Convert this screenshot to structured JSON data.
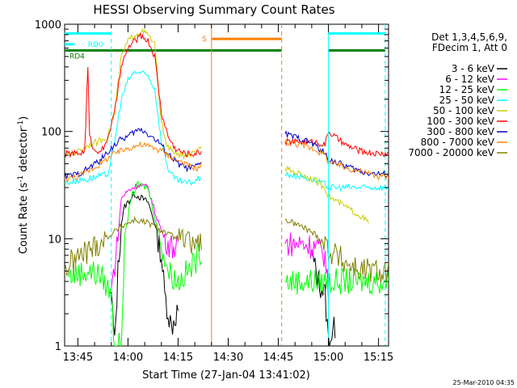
{
  "chart_data": {
    "type": "line",
    "title": "HESSI Observing Summary Count Rates",
    "xlabel": "Start Time (27-Jan-04 13:41:02)",
    "ylabel": "Count Rate (s-1 detector-1)",
    "ylabel_parts": {
      "pre": "Count Rate (s",
      "sup1": "-1",
      "mid": " detector",
      "sup2": "-1",
      "post": ")"
    },
    "timestamp": "25-Mar-2010 04:35",
    "y_scale": "log",
    "ylim": [
      1,
      1000
    ],
    "xlim": [
      "13:41:02",
      "15:18:00"
    ],
    "x_ticks": [
      "13:45",
      "14:00",
      "14:15",
      "14:30",
      "14:45",
      "15:00",
      "15:15"
    ],
    "y_ticks": [
      "1",
      "10",
      "100",
      "1000"
    ],
    "legend_header": [
      "Det 1,3,4,5,6,9,",
      "FDecim 1, Att 0"
    ],
    "legend_placement": "right",
    "series": [
      {
        "name": "3 - 6 keV",
        "color": "#000000",
        "points": [
          [
            "13:55",
            3.2
          ],
          [
            "13:56",
            1.0
          ],
          [
            "13:57",
            5
          ],
          [
            "13:58",
            14
          ],
          [
            "13:59",
            20
          ],
          [
            "14:00",
            22
          ],
          [
            "14:02",
            26
          ],
          [
            "14:04",
            24
          ],
          [
            "14:06",
            22
          ],
          [
            "14:08",
            14
          ],
          [
            "14:10",
            7
          ],
          [
            "14:11",
            3
          ],
          [
            "14:13",
            1.5
          ],
          [
            "14:15",
            2.2
          ],
          [
            "14:55",
            7
          ],
          [
            "14:57",
            4
          ],
          [
            "14:59",
            3
          ],
          [
            "15:00",
            1.1
          ],
          [
            "15:02",
            1.5
          ]
        ]
      },
      {
        "name": "6 - 12 keV",
        "color": "#ff00ff",
        "points": [
          [
            "13:55",
            3.3
          ],
          [
            "13:57",
            10
          ],
          [
            "13:58",
            24
          ],
          [
            "14:00",
            28
          ],
          [
            "14:03",
            32
          ],
          [
            "14:06",
            30
          ],
          [
            "14:08",
            18
          ],
          [
            "14:10",
            12
          ],
          [
            "14:12",
            9
          ],
          [
            "14:15",
            8
          ],
          [
            "14:47",
            9
          ],
          [
            "14:52",
            9
          ],
          [
            "14:56",
            8.5
          ],
          [
            "14:59",
            7
          ],
          [
            "15:00",
            3
          ]
        ]
      },
      {
        "name": "12 - 25 keV",
        "color": "#00ff00",
        "points": [
          [
            "13:42",
            4.5
          ],
          [
            "13:48",
            5
          ],
          [
            "13:52",
            4.5
          ],
          [
            "13:55",
            3
          ],
          [
            "13:56",
            1.0
          ],
          [
            "13:58",
            1.0
          ],
          [
            "13:59",
            10
          ],
          [
            "14:01",
            25
          ],
          [
            "14:03",
            32
          ],
          [
            "14:06",
            30
          ],
          [
            "14:09",
            12
          ],
          [
            "14:12",
            5
          ],
          [
            "14:15",
            4
          ],
          [
            "14:18",
            5
          ],
          [
            "14:20",
            6
          ],
          [
            "14:22",
            8
          ],
          [
            "14:47",
            4
          ],
          [
            "14:52",
            4
          ],
          [
            "14:57",
            4
          ],
          [
            "15:00",
            4
          ],
          [
            "15:05",
            4
          ],
          [
            "15:10",
            4
          ],
          [
            "15:15",
            4
          ],
          [
            "15:18",
            4
          ]
        ]
      },
      {
        "name": "25 - 50 keV",
        "color": "#00ffff",
        "points": [
          [
            "13:41",
            33
          ],
          [
            "13:45",
            35
          ],
          [
            "13:48",
            36
          ],
          [
            "13:51",
            38
          ],
          [
            "13:54",
            40
          ],
          [
            "13:56",
            80
          ],
          [
            "13:58",
            200
          ],
          [
            "14:00",
            300
          ],
          [
            "14:02",
            360
          ],
          [
            "14:04",
            350
          ],
          [
            "14:06",
            330
          ],
          [
            "14:08",
            250
          ],
          [
            "14:10",
            80
          ],
          [
            "14:12",
            45
          ],
          [
            "14:14",
            36
          ],
          [
            "14:17",
            33
          ],
          [
            "14:20",
            34
          ],
          [
            "14:22",
            38
          ],
          [
            "14:47",
            40
          ],
          [
            "14:52",
            38
          ],
          [
            "14:56",
            35
          ],
          [
            "14:59",
            32
          ],
          [
            "15:00",
            30
          ],
          [
            "15:05",
            30
          ],
          [
            "15:10",
            30
          ],
          [
            "15:15",
            30
          ],
          [
            "15:18",
            30
          ]
        ]
      },
      {
        "name": "50 - 100 keV",
        "color": "#cccc00",
        "points": [
          [
            "13:41",
            60
          ],
          [
            "13:45",
            65
          ],
          [
            "13:48",
            75
          ],
          [
            "13:51",
            80
          ],
          [
            "13:54",
            90
          ],
          [
            "13:56",
            150
          ],
          [
            "13:58",
            500
          ],
          [
            "14:00",
            700
          ],
          [
            "14:02",
            800
          ],
          [
            "14:04",
            860
          ],
          [
            "14:06",
            800
          ],
          [
            "14:08",
            650
          ],
          [
            "14:10",
            120
          ],
          [
            "14:12",
            70
          ],
          [
            "14:15",
            60
          ],
          [
            "14:18",
            60
          ],
          [
            "14:21",
            65
          ],
          [
            "14:22",
            70
          ],
          [
            "14:47",
            45
          ],
          [
            "14:52",
            40
          ],
          [
            "14:56",
            35
          ],
          [
            "14:59",
            30
          ],
          [
            "15:00",
            25
          ],
          [
            "15:05",
            20
          ],
          [
            "15:10",
            16
          ],
          [
            "15:12",
            14
          ]
        ]
      },
      {
        "name": "100 - 300 keV",
        "color": "#ff0000",
        "points": [
          [
            "13:41",
            62
          ],
          [
            "13:45",
            62
          ],
          [
            "13:47",
            65
          ],
          [
            "13:48",
            400
          ],
          [
            "13:48.5",
            90
          ],
          [
            "13:50",
            65
          ],
          [
            "13:53",
            70
          ],
          [
            "13:56",
            150
          ],
          [
            "13:58",
            400
          ],
          [
            "14:00",
            600
          ],
          [
            "14:02",
            700
          ],
          [
            "14:04",
            780
          ],
          [
            "14:06",
            700
          ],
          [
            "14:08",
            500
          ],
          [
            "14:10",
            150
          ],
          [
            "14:12",
            90
          ],
          [
            "14:14",
            70
          ],
          [
            "14:17",
            62
          ],
          [
            "14:20",
            62
          ],
          [
            "14:22",
            65
          ],
          [
            "14:47",
            80
          ],
          [
            "14:52",
            80
          ],
          [
            "14:56",
            80
          ],
          [
            "14:59",
            75
          ],
          [
            "15:00",
            100
          ],
          [
            "15:05",
            75
          ],
          [
            "15:10",
            65
          ],
          [
            "15:15",
            62
          ],
          [
            "15:18",
            62
          ]
        ]
      },
      {
        "name": "300 - 800 keV",
        "color": "#0000cc",
        "points": [
          [
            "13:41",
            38
          ],
          [
            "13:45",
            40
          ],
          [
            "13:48",
            45
          ],
          [
            "13:52",
            55
          ],
          [
            "13:55",
            70
          ],
          [
            "13:58",
            85
          ],
          [
            "14:00",
            90
          ],
          [
            "14:02",
            100
          ],
          [
            "14:04",
            105
          ],
          [
            "14:06",
            95
          ],
          [
            "14:08",
            85
          ],
          [
            "14:10",
            75
          ],
          [
            "14:12",
            62
          ],
          [
            "14:15",
            50
          ],
          [
            "14:18",
            45
          ],
          [
            "14:21",
            48
          ],
          [
            "14:22",
            50
          ],
          [
            "14:47",
            95
          ],
          [
            "14:52",
            85
          ],
          [
            "14:56",
            75
          ],
          [
            "14:59",
            62
          ],
          [
            "15:00",
            55
          ],
          [
            "15:05",
            48
          ],
          [
            "15:10",
            42
          ],
          [
            "15:15",
            40
          ],
          [
            "15:18",
            40
          ]
        ]
      },
      {
        "name": "800 - 7000 keV",
        "color": "#ff8000",
        "points": [
          [
            "13:41",
            36
          ],
          [
            "13:45",
            38
          ],
          [
            "13:48",
            43
          ],
          [
            "13:52",
            50
          ],
          [
            "13:55",
            60
          ],
          [
            "13:58",
            66
          ],
          [
            "14:00",
            70
          ],
          [
            "14:02",
            73
          ],
          [
            "14:04",
            75
          ],
          [
            "14:06",
            73
          ],
          [
            "14:08",
            70
          ],
          [
            "14:10",
            66
          ],
          [
            "14:12",
            60
          ],
          [
            "14:15",
            54
          ],
          [
            "14:18",
            48
          ],
          [
            "14:21",
            45
          ],
          [
            "14:22",
            50
          ],
          [
            "14:47",
            80
          ],
          [
            "14:52",
            75
          ],
          [
            "14:56",
            68
          ],
          [
            "14:59",
            60
          ],
          [
            "15:00",
            52
          ],
          [
            "15:05",
            46
          ],
          [
            "15:10",
            42
          ],
          [
            "15:15",
            38
          ],
          [
            "15:18",
            38
          ]
        ]
      },
      {
        "name": "7000 - 20000 keV",
        "color": "#808000",
        "points": [
          [
            "13:41",
            5
          ],
          [
            "13:43",
            6
          ],
          [
            "13:46",
            7
          ],
          [
            "13:49",
            8
          ],
          [
            "13:52",
            9.5
          ],
          [
            "13:55",
            11
          ],
          [
            "13:58",
            13
          ],
          [
            "14:00",
            14
          ],
          [
            "14:02",
            15
          ],
          [
            "14:04",
            14.5
          ],
          [
            "14:06",
            14
          ],
          [
            "14:08",
            13
          ],
          [
            "14:10",
            12
          ],
          [
            "14:12",
            11
          ],
          [
            "14:15",
            10
          ],
          [
            "14:18",
            9
          ],
          [
            "14:21",
            9
          ],
          [
            "14:22",
            9.5
          ],
          [
            "14:47",
            15
          ],
          [
            "14:52",
            13
          ],
          [
            "14:56",
            11
          ],
          [
            "14:59",
            9
          ],
          [
            "15:00",
            8
          ],
          [
            "15:05",
            6
          ],
          [
            "15:10",
            5
          ],
          [
            "15:15",
            5
          ],
          [
            "15:18",
            5
          ]
        ]
      }
    ],
    "vertical_lines": [
      {
        "time": "13:55",
        "style": "dashed",
        "color": "#00ffff"
      },
      {
        "time": "14:25",
        "style": "solid",
        "color": "#ff8000"
      },
      {
        "time": "14:46",
        "style": "dashed",
        "color": "#ff8000"
      },
      {
        "time": "15:00",
        "style": "solid",
        "color": "#00ffff"
      },
      {
        "time": "15:17",
        "style": "dashed",
        "color": "#00ffff"
      }
    ],
    "status_bars": [
      {
        "name": "night",
        "color": "#00ffff",
        "level": 820,
        "segments": [
          [
            "13:41",
            "13:55"
          ],
          [
            "15:00",
            "15:17"
          ]
        ]
      },
      {
        "name": "saa",
        "label": "S",
        "color": "#ff8000",
        "level": 730,
        "segments": [
          [
            "14:25",
            "14:46"
          ]
        ]
      },
      {
        "name": "RD0",
        "label": "RD0",
        "color": "#00ffff",
        "level": 650,
        "segments": [
          [
            "13:41",
            "13:44"
          ]
        ]
      },
      {
        "name": "RD4",
        "label": "RD4",
        "color": "#008000",
        "level": 570,
        "segments": [
          [
            "13:41",
            "14:15"
          ],
          [
            "14:15",
            "14:46"
          ],
          [
            "15:00",
            "15:17"
          ]
        ]
      }
    ]
  }
}
